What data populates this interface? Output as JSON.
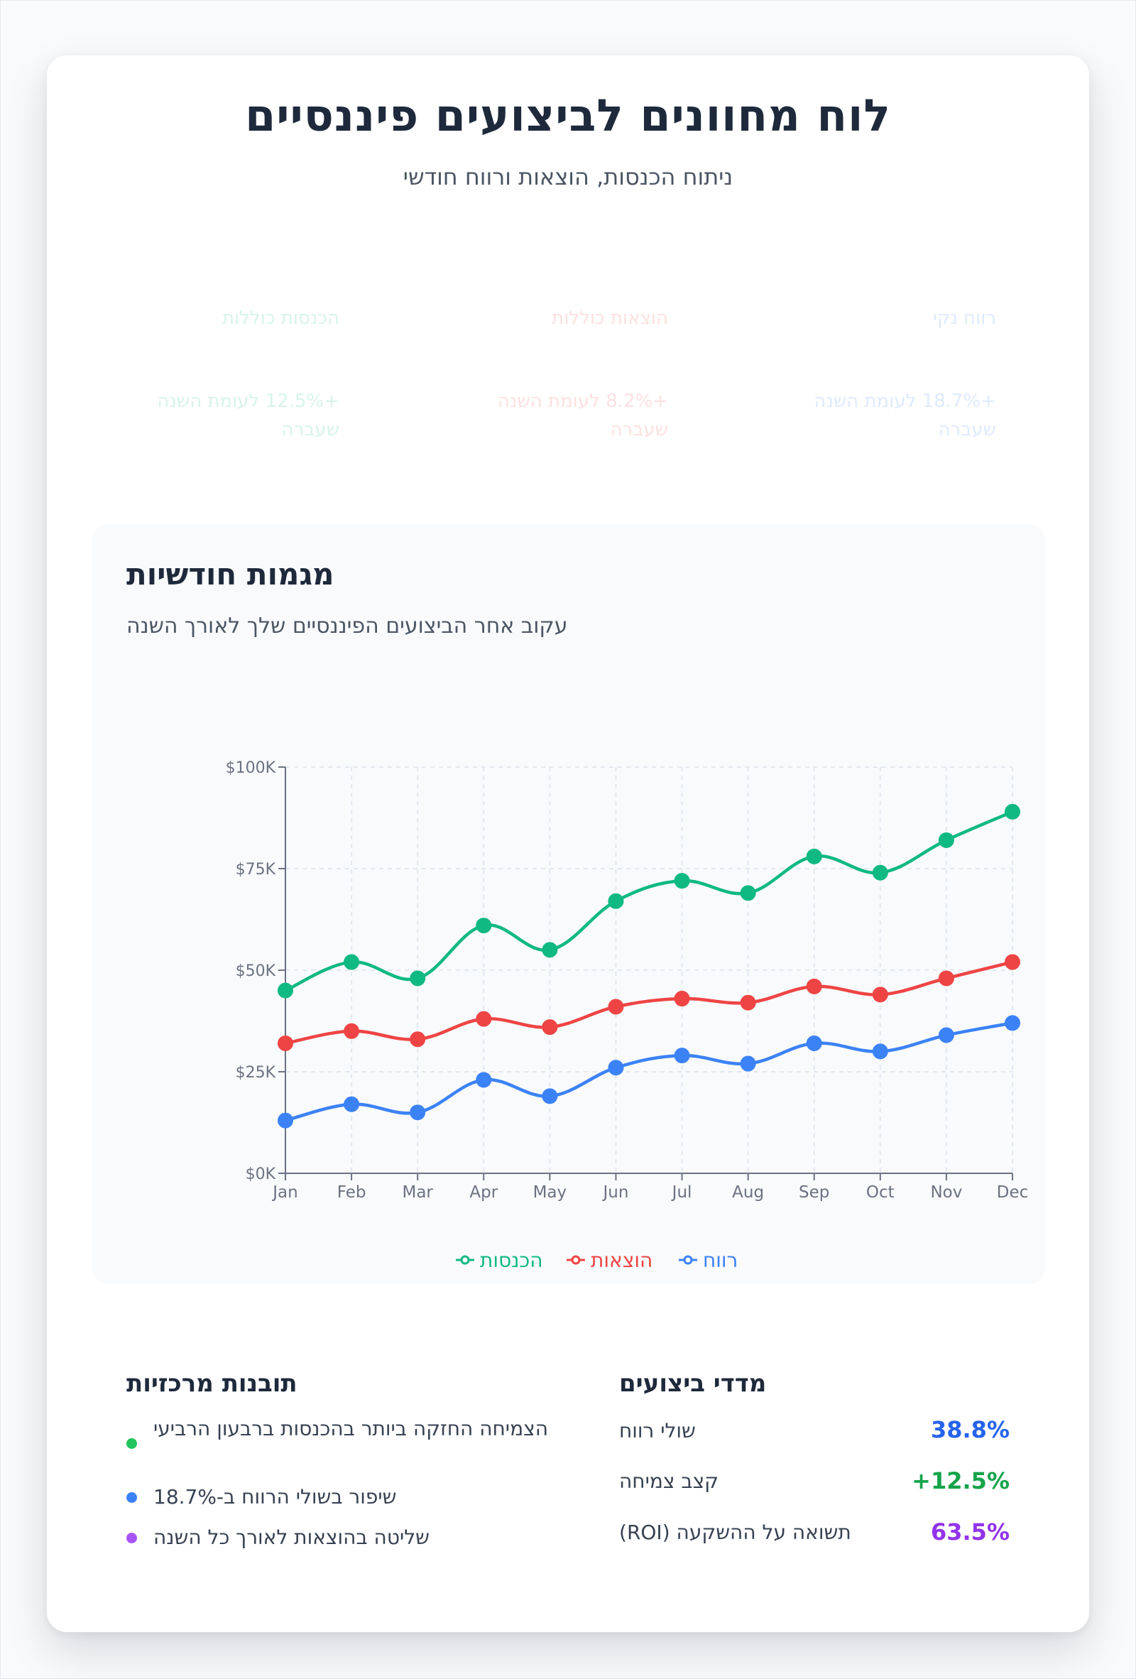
{
  "header": {
    "title": "לוח מחוונים לביצועים פיננסיים",
    "subtitle": "ניתוח הכנסות, הוצאות ורווח חודשי"
  },
  "kpis": [
    {
      "label": "הכנסות כוללות",
      "change": "+12.5%",
      "note": "לעומת השנה שעברה",
      "color": "#10b981"
    },
    {
      "label": "הוצאות כוללות",
      "change": "+8.2%",
      "note": "לעומת השנה שעברה",
      "color": "#ef4444"
    },
    {
      "label": "רווח נקי",
      "change": "+18.7%",
      "note": "לעומת השנה שעברה",
      "color": "#3b82f6"
    }
  ],
  "chart_panel": {
    "title": "מגמות חודשיות",
    "description": "עקוב אחר הביצועים הפיננסיים שלך לאורך השנה"
  },
  "chart_data": {
    "type": "line",
    "x": [
      "Jan",
      "Feb",
      "Mar",
      "Apr",
      "May",
      "Jun",
      "Jul",
      "Aug",
      "Sep",
      "Oct",
      "Nov",
      "Dec"
    ],
    "series": [
      {
        "name": "הכנסות",
        "color": "#10b981",
        "values": [
          45000,
          52000,
          48000,
          61000,
          55000,
          67000,
          72000,
          69000,
          78000,
          74000,
          82000,
          89000
        ]
      },
      {
        "name": "הוצאות",
        "color": "#ef4444",
        "values": [
          32000,
          35000,
          33000,
          38000,
          36000,
          41000,
          43000,
          42000,
          46000,
          44000,
          48000,
          52000
        ]
      },
      {
        "name": "רווח",
        "color": "#3b82f6",
        "values": [
          13000,
          17000,
          15000,
          23000,
          19000,
          26000,
          29000,
          27000,
          32000,
          30000,
          34000,
          37000
        ]
      }
    ],
    "ylim": [
      0,
      100000
    ],
    "yticks": [
      0,
      25000,
      50000,
      75000,
      100000
    ],
    "ytick_labels": [
      "$0K",
      "$25K",
      "$50K",
      "$75K",
      "$100K"
    ],
    "grid": true,
    "legend_position": "bottom-center",
    "smooth": true
  },
  "insights": {
    "title": "תובנות מרכזיות",
    "items": [
      {
        "text": "הצמיחה החזקה ביותר בהכנסות ברבעון הרביעי",
        "color": "#22c55e"
      },
      {
        "text": "שיפור בשולי הרווח ב-18.7%",
        "color": "#3b82f6"
      },
      {
        "text": "שליטה בהוצאות לאורך כל השנה",
        "color": "#a855f7"
      }
    ]
  },
  "metrics": {
    "title": "מדדי ביצועים",
    "items": [
      {
        "label": "שולי רווח",
        "value": "38.8%",
        "color": "#2563eb"
      },
      {
        "label": "קצב צמיחה",
        "value": "+12.5%",
        "color": "#16a34a"
      },
      {
        "label": "תשואה על ההשקעה (ROI)",
        "value": "63.5%",
        "color": "#9333ea"
      }
    ]
  }
}
